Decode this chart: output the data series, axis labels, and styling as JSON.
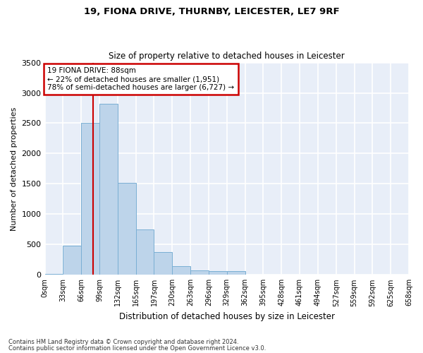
{
  "title": "19, FIONA DRIVE, THURNBY, LEICESTER, LE7 9RF",
  "subtitle": "Size of property relative to detached houses in Leicester",
  "xlabel": "Distribution of detached houses by size in Leicester",
  "ylabel": "Number of detached properties",
  "footnote1": "Contains HM Land Registry data © Crown copyright and database right 2024.",
  "footnote2": "Contains public sector information licensed under the Open Government Licence v3.0.",
  "bar_color": "#bdd4ea",
  "bar_edge_color": "#7aafd4",
  "background_color": "#e8eef8",
  "grid_color": "#ffffff",
  "red_line_x": 88,
  "annotation_text": "19 FIONA DRIVE: 88sqm\n← 22% of detached houses are smaller (1,951)\n78% of semi-detached houses are larger (6,727) →",
  "annotation_box_color": "#ffffff",
  "annotation_box_edge": "#cc0000",
  "bin_width": 33,
  "bar_heights": [
    20,
    480,
    2500,
    2820,
    1520,
    750,
    380,
    140,
    75,
    60,
    60,
    0,
    0,
    0,
    0,
    0,
    0,
    0,
    0,
    0
  ],
  "xlim_min": 0,
  "xlim_max": 660,
  "ylim_min": 0,
  "ylim_max": 3500,
  "yticks": [
    0,
    500,
    1000,
    1500,
    2000,
    2500,
    3000,
    3500
  ],
  "tick_labels": [
    "0sqm",
    "33sqm",
    "66sqm",
    "99sqm",
    "132sqm",
    "165sqm",
    "197sqm",
    "230sqm",
    "263sqm",
    "296sqm",
    "329sqm",
    "362sqm",
    "395sqm",
    "428sqm",
    "461sqm",
    "494sqm",
    "527sqm",
    "559sqm",
    "592sqm",
    "625sqm",
    "658sqm"
  ]
}
